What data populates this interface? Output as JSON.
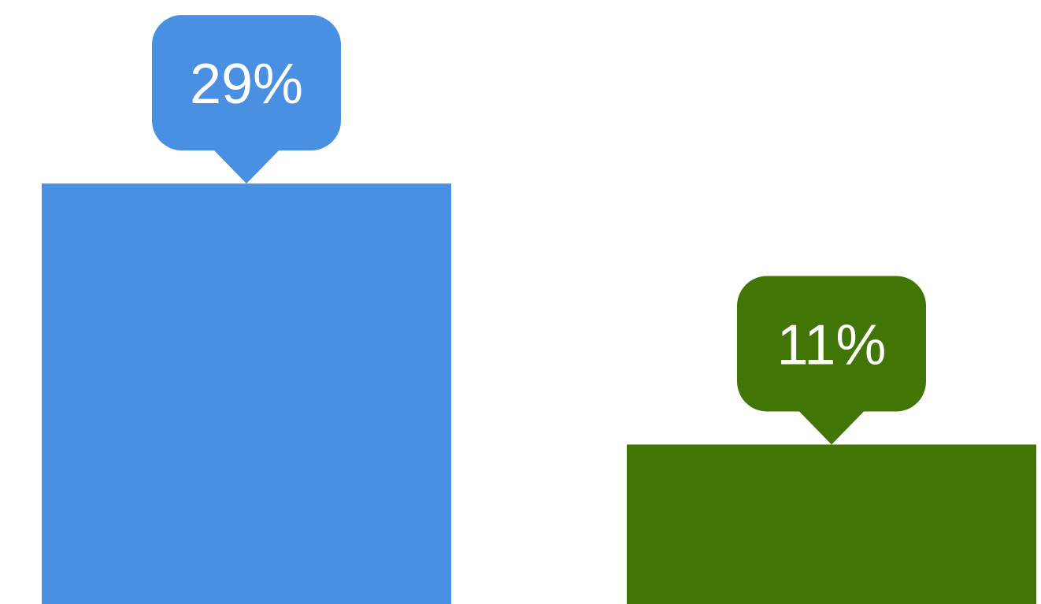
{
  "chart_data": {
    "type": "bar",
    "categories": [
      "",
      ""
    ],
    "values": [
      29,
      11
    ],
    "data_labels": [
      "29%",
      "11%"
    ],
    "colors": [
      "#4A90E2",
      "#417505"
    ],
    "title": "",
    "xlabel": "",
    "ylabel": "",
    "ylim": [
      0,
      36.5
    ],
    "grid": false,
    "legend": "none"
  }
}
